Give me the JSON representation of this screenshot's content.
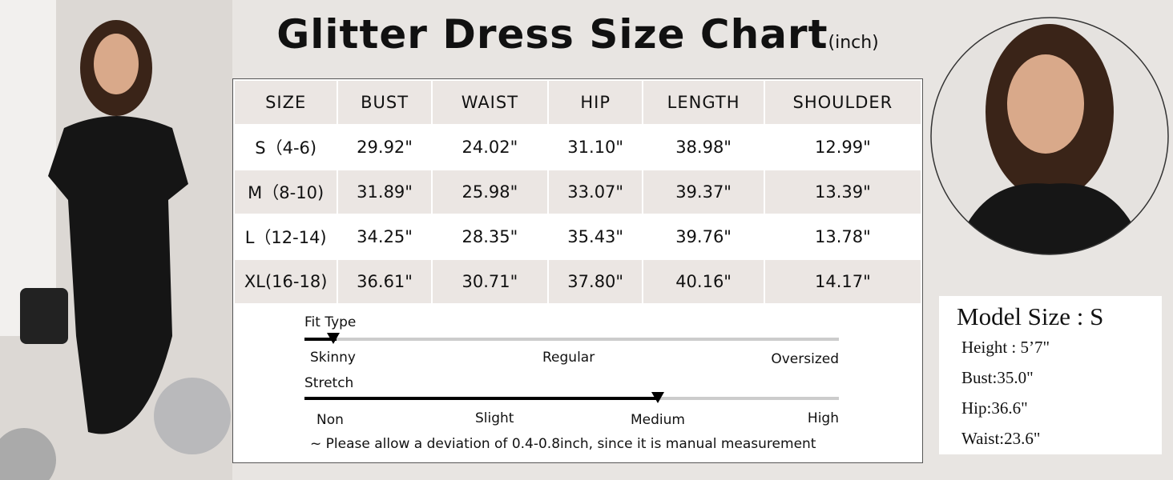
{
  "title": "Glitter Dress Size Chart",
  "unit": "(inch)",
  "table": {
    "header": [
      "SIZE",
      "BUST",
      "WAIST",
      "HIP",
      "LENGTH",
      "SHOULDER"
    ],
    "rows": [
      [
        "S（4-6)",
        "29.92\"",
        "24.02\"",
        "31.10\"",
        "38.98\"",
        "12.99\""
      ],
      [
        "M（8-10)",
        "31.89\"",
        "25.98\"",
        "33.07\"",
        "39.37\"",
        "13.39\""
      ],
      [
        "L（12-14)",
        "34.25\"",
        "28.35\"",
        "35.43\"",
        "39.76\"",
        "13.78\""
      ],
      [
        "XL(16-18)",
        "36.61\"",
        "30.71\"",
        "37.80\"",
        "40.16\"",
        "14.17\""
      ]
    ]
  },
  "fit_type": {
    "label": "Fit Type",
    "scale": [
      "Skinny",
      "Regular",
      "Oversized"
    ]
  },
  "stretch": {
    "label": "Stretch",
    "scale": [
      "Non",
      "Slight",
      "Medium",
      "High"
    ]
  },
  "note": "~ Please allow a deviation of 0.4-0.8inch, since it is manual measurement",
  "model": {
    "title": "Model Size : S",
    "lines": [
      "Height : 5’7\"",
      "Bust:35.0\"",
      "Hip:36.6\"",
      "Waist:23.6\""
    ]
  }
}
